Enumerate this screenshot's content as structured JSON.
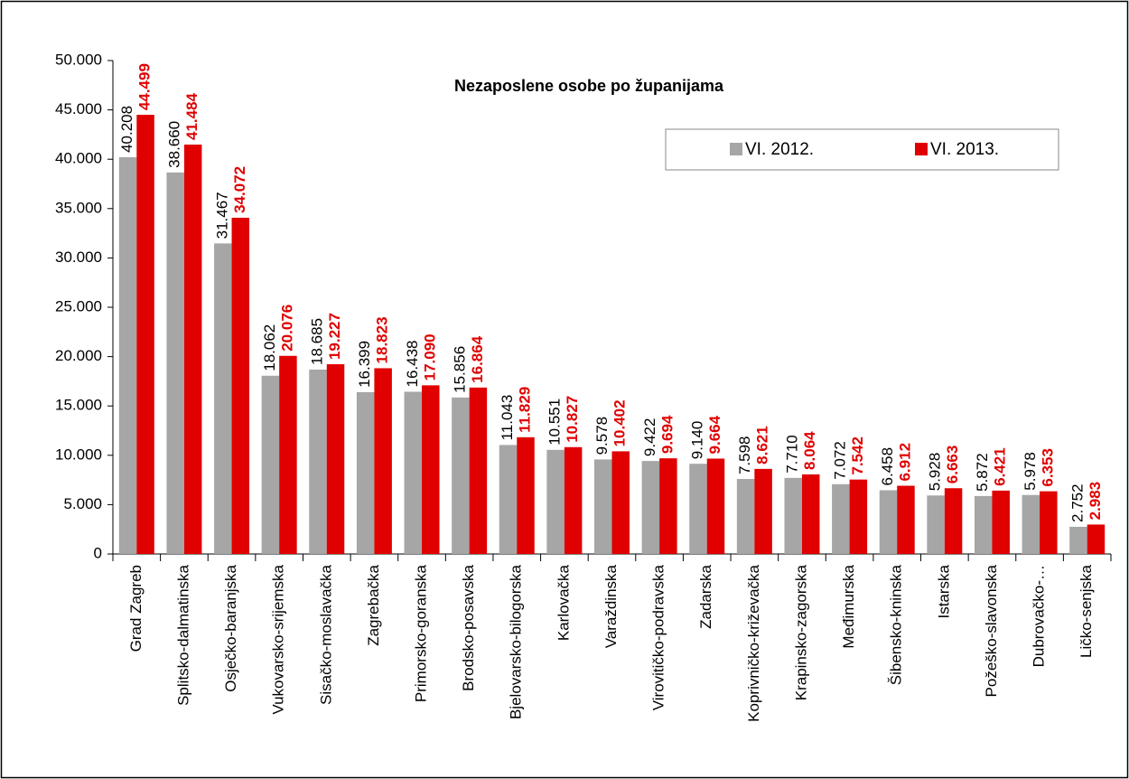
{
  "chart_data": {
    "type": "bar",
    "title": "Nezaposlene osobe po županijama",
    "categories": [
      "Grad Zagreb",
      "Splitsko-dalmatinska",
      "Osječko-baranjska",
      "Vukovarsko-srijemska",
      "Sisačko-moslavačka",
      "Zagrebačka",
      "Primorsko-goranska",
      "Brodsko-posavska",
      "Bjelovarsko-bilogorska",
      "Karlovačka",
      "Varaždinska",
      "Virovitičko-podravska",
      "Zadarska",
      "Koprivničko-križevačka",
      "Krapinsko-zagorska",
      "Međimurska",
      "Šibensko-kninska",
      "Istarska",
      "Požeško-slavonska",
      "Dubrovačko-…",
      "Ličko-senjska"
    ],
    "series": [
      {
        "name": "VI. 2012.",
        "color": "#a6a6a6",
        "values": [
          40208,
          38660,
          31467,
          18062,
          18685,
          16399,
          16438,
          15856,
          11043,
          10551,
          9578,
          9422,
          9140,
          7598,
          7710,
          7072,
          6458,
          5928,
          5872,
          5978,
          2752
        ],
        "value_labels": [
          "40.208",
          "38.660",
          "31.467",
          "18.062",
          "18.685",
          "16.399",
          "16.438",
          "15.856",
          "11.043",
          "10.551",
          "9.578",
          "9.422",
          "9.140",
          "7.598",
          "7.710",
          "7.072",
          "6.458",
          "5.928",
          "5.872",
          "5.978",
          "2.752"
        ]
      },
      {
        "name": "VI. 2013.",
        "color": "#e00000",
        "values": [
          44499,
          41484,
          34072,
          20076,
          19227,
          18823,
          17090,
          16864,
          11829,
          10827,
          10402,
          9694,
          9664,
          8621,
          8064,
          7542,
          6912,
          6663,
          6421,
          6353,
          2983
        ],
        "value_labels": [
          "44.499",
          "41.484",
          "34.072",
          "20.076",
          "19.227",
          "18.823",
          "17.090",
          "16.864",
          "11.829",
          "10.827",
          "10.402",
          "9.694",
          "9.664",
          "8.621",
          "8.064",
          "7.542",
          "6.912",
          "6.663",
          "6.421",
          "6.353",
          "2.983"
        ]
      }
    ],
    "ylim": [
      0,
      50000
    ],
    "yticks": [
      0,
      {
        "value": 5000,
        "label": "5.000"
      },
      {
        "value": 10000,
        "label": "10.000"
      },
      {
        "value": 15000,
        "label": "15.000"
      },
      {
        "value": 20000,
        "label": "20.000"
      },
      {
        "value": 25000,
        "label": "25.000"
      },
      {
        "value": 30000,
        "label": "30.000"
      },
      {
        "value": 35000,
        "label": "35.000"
      },
      {
        "value": 40000,
        "label": "40.000"
      },
      {
        "value": 45000,
        "label": "45.000"
      },
      {
        "value": 50000,
        "label": "50.000"
      }
    ],
    "legend": "upper right",
    "grid": false
  }
}
